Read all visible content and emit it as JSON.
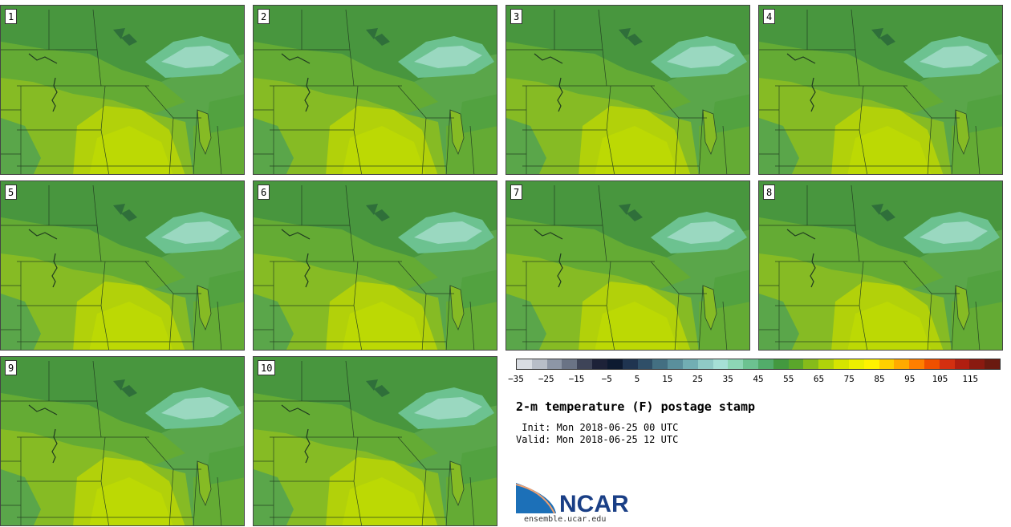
{
  "panels": [
    {
      "label": "1"
    },
    {
      "label": "2"
    },
    {
      "label": "3"
    },
    {
      "label": "4"
    },
    {
      "label": "5"
    },
    {
      "label": "6"
    },
    {
      "label": "7"
    },
    {
      "label": "8"
    },
    {
      "label": "9"
    },
    {
      "label": "10"
    }
  ],
  "colorbar": {
    "colors": [
      "#d9dde3",
      "#b8bec8",
      "#8d96a6",
      "#6a7385",
      "#3e4458",
      "#1d2238",
      "#0d1a30",
      "#1f3450",
      "#2f4f68",
      "#436f82",
      "#5a8f9c",
      "#72aeb3",
      "#8fcac6",
      "#a6e0d6",
      "#8dd6b5",
      "#6cc290",
      "#52ac6a",
      "#43993f",
      "#5aa62b",
      "#86bb1a",
      "#b0d20a",
      "#d6e400",
      "#ecef00",
      "#fff200",
      "#ffd000",
      "#ffaa00",
      "#ff7f00",
      "#f05000",
      "#d42f10",
      "#b01e10",
      "#8a1a10",
      "#6a1a10"
    ],
    "tick_labels": [
      "−35",
      "−25",
      "−15",
      "−5",
      "5",
      "15",
      "25",
      "35",
      "45",
      "55",
      "65",
      "75",
      "85",
      "95",
      "105",
      "115"
    ],
    "min": -35,
    "max": 125
  },
  "title": "2-m temperature (F) postage stamp",
  "init": " Init: Mon 2018-06-25 00 UTC",
  "valid": "Valid: Mon 2018-06-25 12 UTC",
  "logo_text": "NCAR",
  "url": "ensemble.ucar.edu"
}
